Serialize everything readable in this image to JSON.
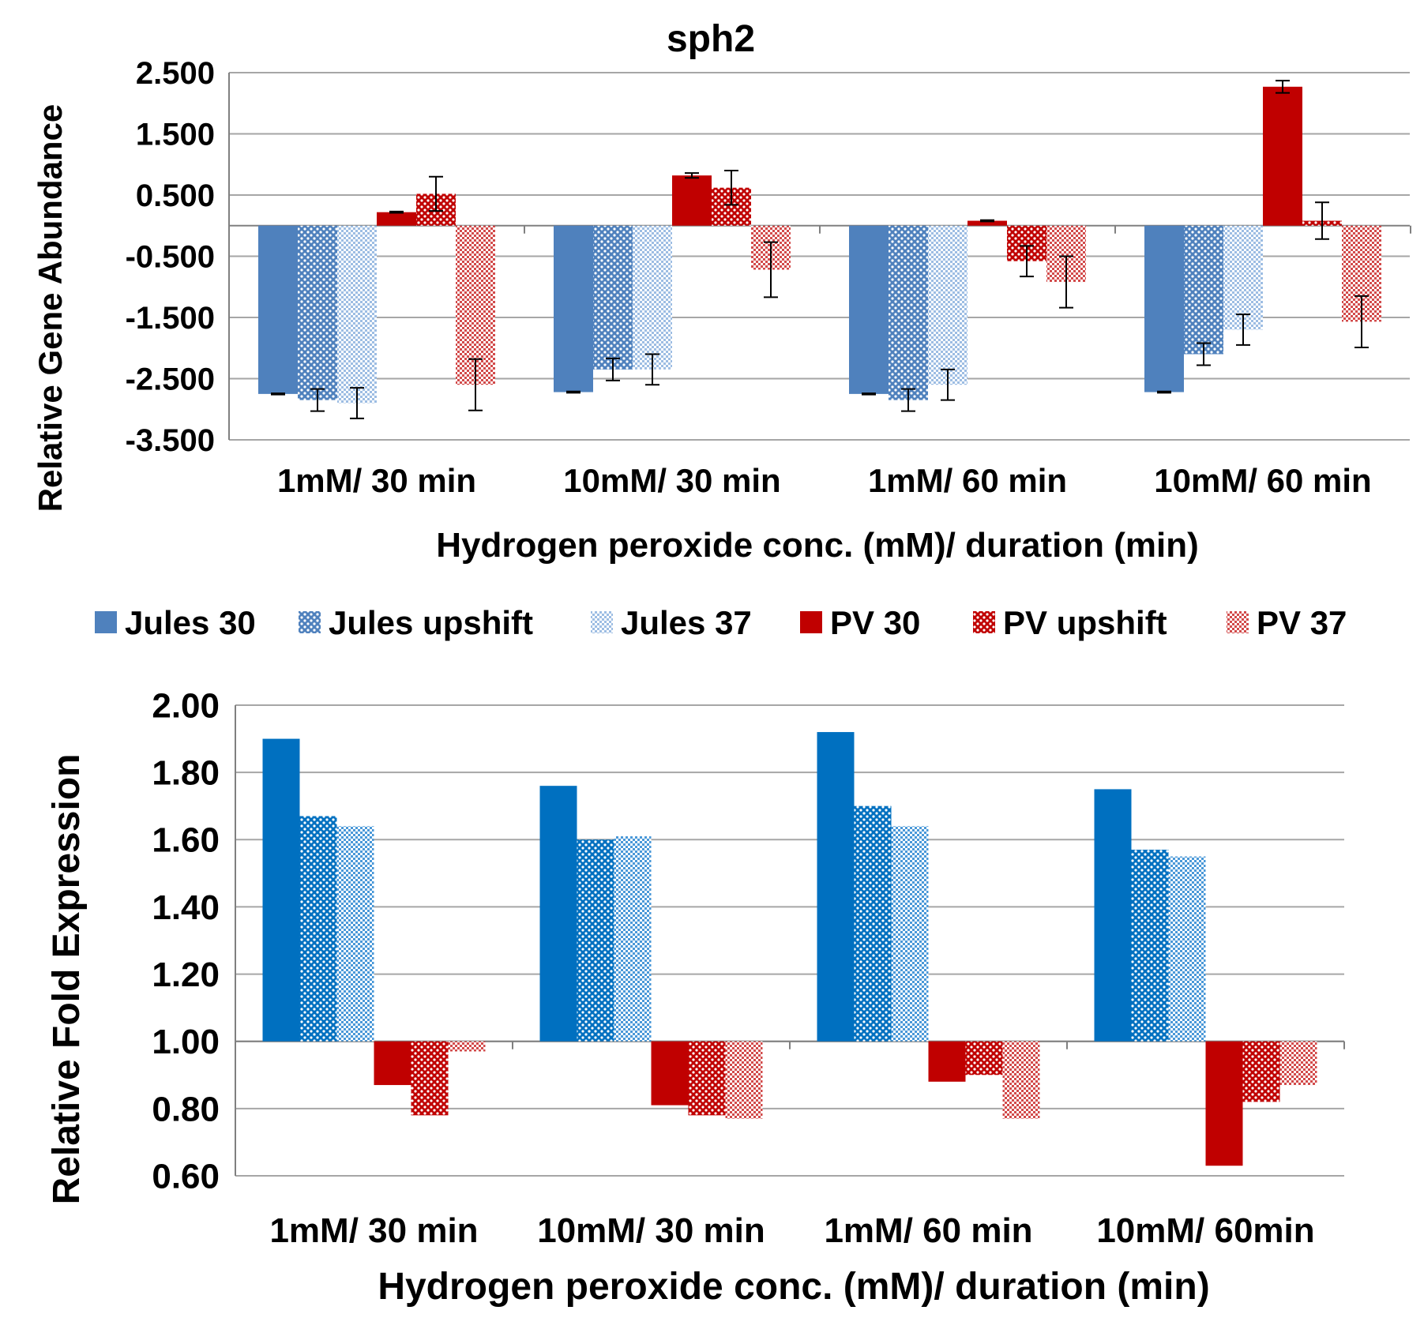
{
  "colors": {
    "jules": "#4F81BD",
    "jules_light": "#7EA6D9",
    "jules_bright": "#0070C0",
    "pv": "#C00000",
    "pv_light": "#E06666",
    "grid": "#A6A6A6",
    "axis": "#808080",
    "text": "#000000"
  },
  "legend": {
    "items": [
      {
        "label": "Jules 30",
        "pattern": "solid-blue"
      },
      {
        "label": "Jules upshift",
        "pattern": "dots-blue"
      },
      {
        "label": "Jules 37",
        "pattern": "check-blue"
      },
      {
        "label": "PV 30",
        "pattern": "solid-red"
      },
      {
        "label": "PV upshift",
        "pattern": "dots-red"
      },
      {
        "label": "PV 37",
        "pattern": "check-red"
      }
    ]
  },
  "chart_data": [
    {
      "type": "bar",
      "title": "sph2",
      "xlabel": "Hydrogen peroxide conc. (mM)/ duration (min)",
      "ylabel": "Relative Gene Abundance",
      "ylim": [
        -3.5,
        2.5
      ],
      "yticks": [
        "2.500",
        "1.500",
        "0.500",
        "-0.500",
        "-1.500",
        "-2.500",
        "-3.500"
      ],
      "ytick_values": [
        2.5,
        1.5,
        0.5,
        -0.5,
        -1.5,
        -2.5,
        -3.5
      ],
      "baseline": 0,
      "grid": true,
      "categories": [
        "1mM/ 30 min",
        "10mM/ 30 min",
        "1mM/ 60 min",
        "10mM/ 60 min"
      ],
      "series": [
        {
          "name": "Jules 30",
          "values": [
            -2.75,
            -2.72,
            -2.75,
            -2.72
          ],
          "errors": [
            0.01,
            0.01,
            0.01,
            0.01
          ]
        },
        {
          "name": "Jules upshift",
          "values": [
            -2.85,
            -2.35,
            -2.85,
            -2.1
          ],
          "errors": [
            0.18,
            0.18,
            0.18,
            0.18
          ]
        },
        {
          "name": "Jules 37",
          "values": [
            -2.9,
            -2.35,
            -2.6,
            -1.7
          ],
          "errors": [
            0.25,
            0.25,
            0.25,
            0.25
          ]
        },
        {
          "name": "PV 30",
          "values": [
            0.22,
            0.82,
            0.08,
            2.27
          ],
          "errors": [
            0.01,
            0.04,
            0.01,
            0.1
          ]
        },
        {
          "name": "PV upshift",
          "values": [
            0.52,
            0.62,
            -0.58,
            0.08
          ],
          "errors": [
            0.28,
            0.28,
            0.25,
            0.3
          ]
        },
        {
          "name": "PV 37",
          "values": [
            -2.6,
            -0.72,
            -0.92,
            -1.57
          ],
          "errors": [
            0.42,
            0.45,
            0.42,
            0.42
          ]
        }
      ]
    },
    {
      "type": "bar",
      "title": "",
      "xlabel": "Hydrogen peroxide conc. (mM)/ duration (min)",
      "ylabel": "Relative Fold Expression",
      "ylim": [
        0.6,
        2.0
      ],
      "yticks": [
        "2.00",
        "1.80",
        "1.60",
        "1.40",
        "1.20",
        "1.00",
        "0.80",
        "0.60"
      ],
      "ytick_values": [
        2.0,
        1.8,
        1.6,
        1.4,
        1.2,
        1.0,
        0.8,
        0.6
      ],
      "baseline": 1.0,
      "grid": true,
      "categories": [
        "1mM/ 30 min",
        "10mM/ 30 min",
        "1mM/ 60 min",
        "10mM/ 60min"
      ],
      "series": [
        {
          "name": "Jules 30",
          "values": [
            1.9,
            1.76,
            1.92,
            1.75
          ]
        },
        {
          "name": "Jules upshift",
          "values": [
            1.67,
            1.6,
            1.7,
            1.57
          ]
        },
        {
          "name": "Jules 37",
          "values": [
            1.64,
            1.61,
            1.64,
            1.55
          ]
        },
        {
          "name": "PV 30",
          "values": [
            0.87,
            0.81,
            0.88,
            0.63
          ]
        },
        {
          "name": "PV upshift",
          "values": [
            0.78,
            0.78,
            0.9,
            0.82
          ]
        },
        {
          "name": "PV 37",
          "values": [
            0.97,
            0.77,
            0.77,
            0.87
          ]
        }
      ]
    }
  ]
}
